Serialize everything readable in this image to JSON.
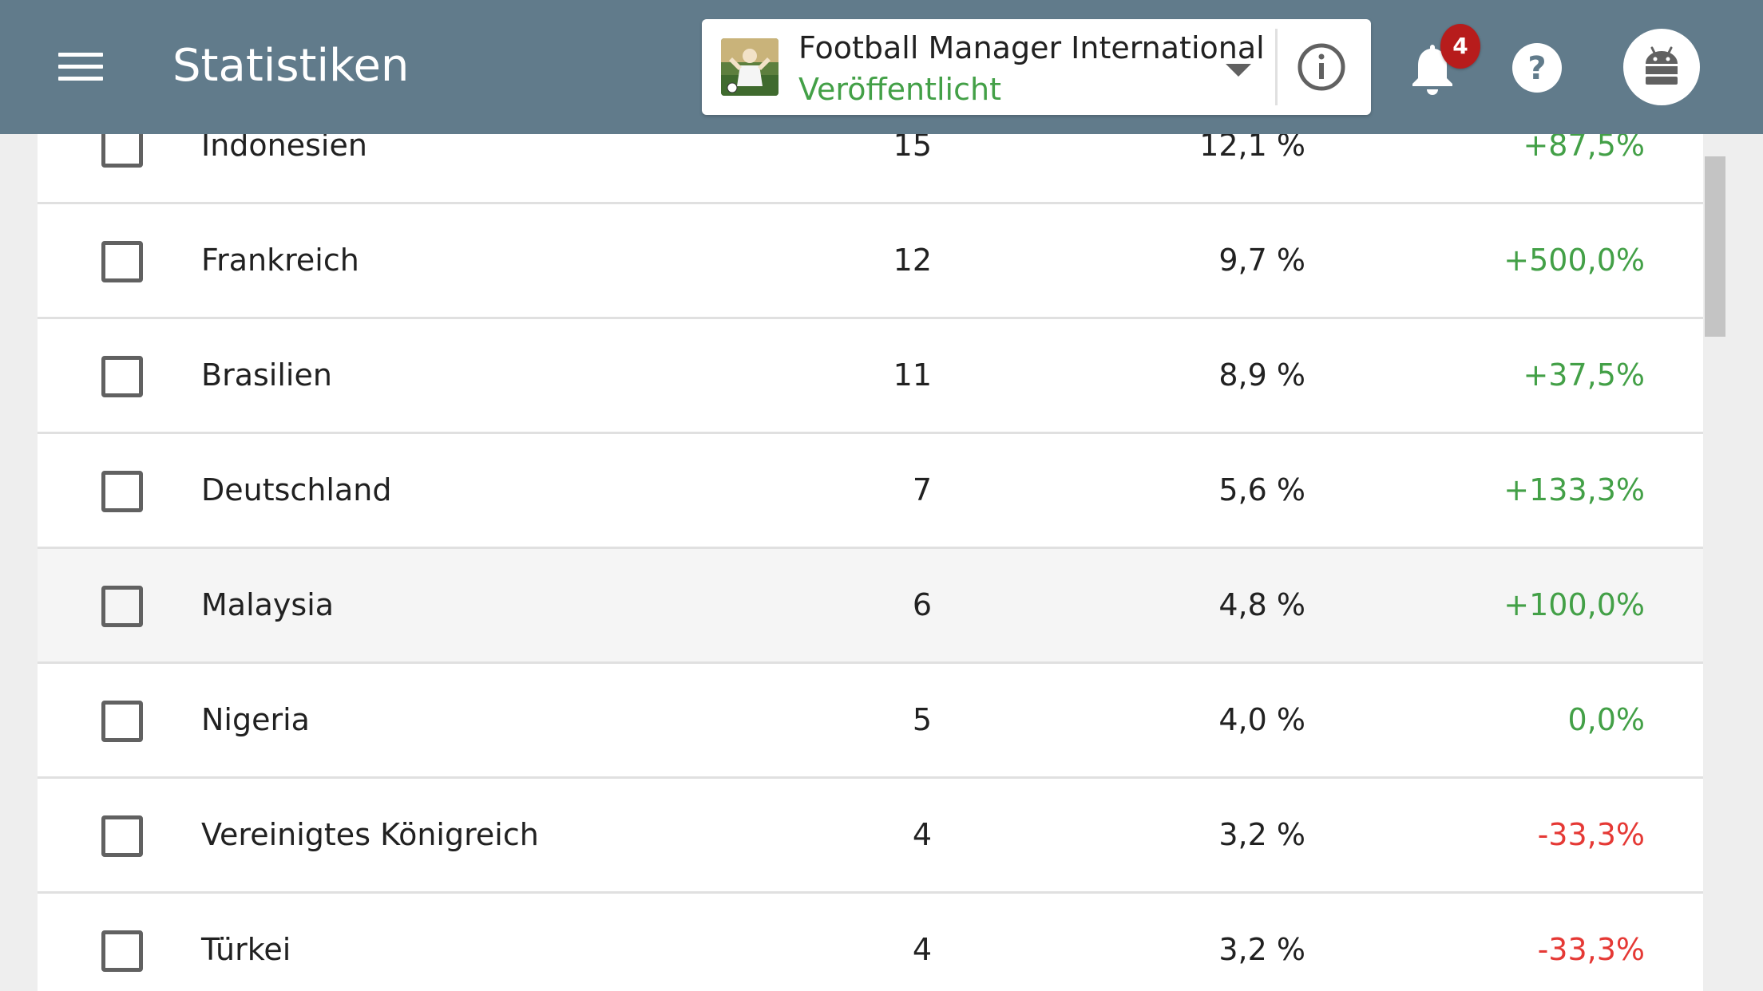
{
  "appbar": {
    "title": "Statistiken",
    "app_name": "Football Manager International",
    "app_status": "Veröffentlicht",
    "notification_count": "4",
    "background_color": "#617b8b"
  },
  "icons": {
    "menu": "hamburger-menu-icon",
    "info": "info-icon",
    "bell": "bell-icon",
    "help": "help-icon",
    "avatar": "android-icon",
    "dropdown": "caret-down-icon"
  },
  "colors": {
    "positive": "#43a047",
    "negative": "#e53935",
    "status": "#43a047",
    "badge": "#b71c1c"
  },
  "table": {
    "rows": [
      {
        "country": "Indonesien",
        "count": "15",
        "share": "12,1 %",
        "change": "+87,5%",
        "trend": "positive",
        "checked": false
      },
      {
        "country": "Frankreich",
        "count": "12",
        "share": "9,7 %",
        "change": "+500,0%",
        "trend": "positive",
        "checked": false
      },
      {
        "country": "Brasilien",
        "count": "11",
        "share": "8,9 %",
        "change": "+37,5%",
        "trend": "positive",
        "checked": false
      },
      {
        "country": "Deutschland",
        "count": "7",
        "share": "5,6 %",
        "change": "+133,3%",
        "trend": "positive",
        "checked": false
      },
      {
        "country": "Malaysia",
        "count": "6",
        "share": "4,8 %",
        "change": "+100,0%",
        "trend": "positive",
        "checked": false,
        "highlighted": true
      },
      {
        "country": "Nigeria",
        "count": "5",
        "share": "4,0 %",
        "change": "0,0%",
        "trend": "positive",
        "checked": false
      },
      {
        "country": "Vereinigtes Königreich",
        "count": "4",
        "share": "3,2 %",
        "change": "-33,3%",
        "trend": "negative",
        "checked": false
      },
      {
        "country": "Türkei",
        "count": "4",
        "share": "3,2 %",
        "change": "-33,3%",
        "trend": "negative",
        "checked": false
      }
    ]
  }
}
